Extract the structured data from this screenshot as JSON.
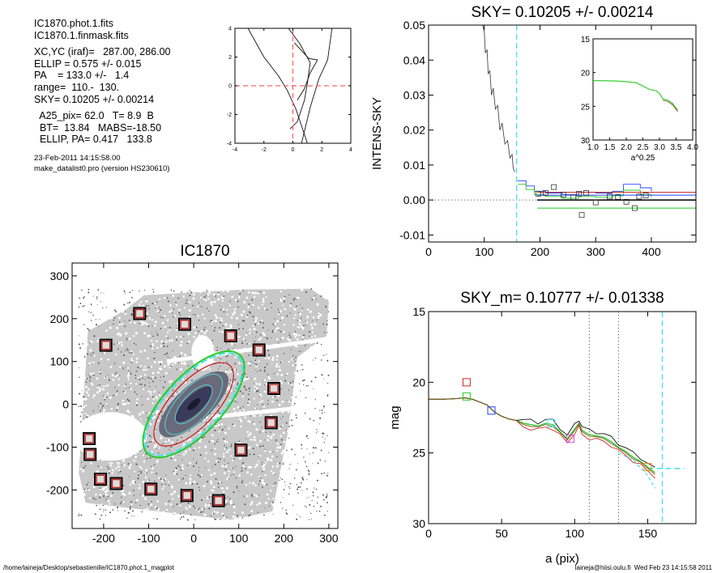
{
  "info": {
    "lines": [
      "IC1870.phot.1.fits",
      "IC1870.1.finmask.fits",
      "",
      "XC,YC (iraf)=   287.00, 286.00",
      "ELLIP = 0.575 +/- 0.015",
      "PA    = 133.0 +/-   1.4",
      "range=  110.-  130.",
      "SKY= 0.10205 +/- 0.00214",
      "",
      "  A25_pix= 62.0   T= 8.9  B",
      "  BT=  13.84   MABS=-18.50",
      "  ELLIP, PA= 0.417   133.8"
    ],
    "date": "23-Feb-2011 14:15:58.00",
    "program": "make_datalist0.pro (version HS230610)"
  },
  "footer": {
    "left": "/home/laineja/Desktop/sebastienille/IC1870.phot.1_magplot",
    "right": "laineja@hiisi.oulu.fi  Wed Feb 23 14:15:58 2011"
  },
  "colors": {
    "cyan_dash": "#44e0f0",
    "red_dash": "#ff6060",
    "green": "#22cc22",
    "red": "#cc2222",
    "blue": "#2244ff",
    "magenta": "#e040e0",
    "orange": "#e09020"
  },
  "chart_data": [
    {
      "id": "contour",
      "type": "line",
      "xlim": [
        -4,
        4
      ],
      "ylim": [
        -4,
        4
      ],
      "xticks": [
        -4,
        -2,
        0,
        2,
        4
      ],
      "yticks": [
        -4,
        -2,
        0,
        2,
        4
      ],
      "series": [
        {
          "x": [
            -3.1,
            -2.0,
            -1.0,
            -0.4,
            0.2,
            1.0
          ],
          "y": [
            4.0,
            2.0,
            0.7,
            -0.3,
            -1.6,
            -4.0
          ]
        },
        {
          "x": [
            -0.3,
            0.5,
            1.2,
            1.0,
            0.8,
            0.3,
            -0.2
          ],
          "y": [
            4.0,
            2.9,
            1.6,
            0.2,
            -1.0,
            -2.5,
            -3.0
          ]
        },
        {
          "x": [
            0.1,
            1.1,
            1.7,
            1.2,
            0.8,
            0.3
          ],
          "y": [
            3.0,
            1.9,
            1.8,
            0.9,
            -0.2,
            -1.0
          ]
        },
        {
          "x": [
            2.7,
            2.4,
            1.8,
            1.2,
            0.6
          ],
          "y": [
            4.0,
            1.8,
            0.5,
            -1.5,
            -4.0
          ]
        }
      ],
      "crosshair": {
        "x": 0,
        "y": 0
      }
    },
    {
      "id": "sky",
      "type": "line",
      "title": "SKY= 0.10205 +/- 0.00214",
      "xlabel": "",
      "ylabel": "INTENS-SKY",
      "xlim": [
        0,
        480
      ],
      "ylim": [
        -0.012,
        0.05
      ],
      "xticks": [
        0,
        100,
        200,
        300,
        400
      ],
      "yticks": [
        -0.01,
        0.0,
        0.01,
        0.02,
        0.03,
        0.04,
        0.05
      ],
      "ytick_labels": [
        "-0.01",
        "0.00",
        "0.01",
        "0.02",
        "0.03",
        "0.04",
        "0.05"
      ],
      "profile": {
        "x": [
          97,
          100,
          102,
          105,
          107,
          110,
          113,
          116,
          120,
          124,
          128,
          132,
          137,
          142,
          146,
          150,
          152,
          155
        ],
        "y": [
          0.05,
          0.048,
          0.042,
          0.043,
          0.036,
          0.037,
          0.03,
          0.032,
          0.026,
          0.027,
          0.02,
          0.022,
          0.016,
          0.017,
          0.012,
          0.013,
          0.009,
          0.008
        ]
      },
      "steps": [
        {
          "color": "blue",
          "x": [
            160,
            175,
            190,
            210,
            240,
            270,
            300,
            330,
            350,
            380,
            400
          ],
          "y": [
            0.0055,
            0.004,
            0.0025,
            0.002,
            0.0015,
            0.0022,
            0.002,
            0.0025,
            0.0045,
            0.0035,
            0.0025
          ]
        },
        {
          "color": "green",
          "x": [
            160,
            175,
            190,
            210,
            240,
            270,
            300,
            330,
            350,
            380,
            400
          ],
          "y": [
            0.0045,
            0.003,
            0.0015,
            0.001,
            0.0005,
            0.001,
            0.0008,
            0.0012,
            0.0028,
            0.0015,
            0.0008
          ]
        }
      ],
      "hlines": [
        {
          "color": "red",
          "x0": 195,
          "x1": 480,
          "y": 0.0022
        },
        {
          "color": "blue",
          "x0": 195,
          "x1": 480,
          "y": 0.0014
        },
        {
          "color": "black",
          "x0": 195,
          "x1": 480,
          "y": 0.0
        },
        {
          "color": "green",
          "x0": 195,
          "x1": 480,
          "y": -0.0023
        }
      ],
      "squares": [
        {
          "x": 197,
          "y": 0.0018
        },
        {
          "x": 210,
          "y": 0.002
        },
        {
          "x": 225,
          "y": 0.0037
        },
        {
          "x": 242,
          "y": 0.0015
        },
        {
          "x": 260,
          "y": 0.0008
        },
        {
          "x": 270,
          "y": 0.0018
        },
        {
          "x": 275,
          "y": -0.0043
        },
        {
          "x": 283,
          "y": 0.002
        },
        {
          "x": 300,
          "y": -0.0007
        },
        {
          "x": 325,
          "y": 0.001
        },
        {
          "x": 340,
          "y": 0.0009
        },
        {
          "x": 355,
          "y": -0.0005
        },
        {
          "x": 370,
          "y": -0.0023
        },
        {
          "x": 378,
          "y": 0.001
        },
        {
          "x": 390,
          "y": 0.0013
        }
      ],
      "zero_line": 0.0,
      "vline_cyan": 158,
      "inset": {
        "xlabel": "a^0.25",
        "xlim": [
          1.0,
          4.0
        ],
        "ylim": [
          30,
          15
        ],
        "xticks": [
          1.0,
          1.5,
          2.0,
          2.5,
          3.0,
          3.5,
          4.0
        ],
        "xtick_labels": [
          "1.0",
          "1.5",
          "2.0",
          "2.5",
          "3.0",
          "3.5",
          "4.0"
        ],
        "yticks": [
          15,
          20,
          25,
          30
        ],
        "x": [
          1.0,
          1.3,
          1.7,
          2.0,
          2.3,
          2.5,
          2.7,
          2.9,
          3.0,
          3.1,
          3.25,
          3.4,
          3.55
        ],
        "y": [
          21.2,
          21.2,
          21.25,
          21.35,
          21.5,
          22.0,
          22.5,
          22.7,
          23.1,
          23.9,
          24.1,
          24.6,
          25.6
        ]
      }
    },
    {
      "id": "image",
      "type": "scatter",
      "title": "IC1870",
      "xlim": [
        -270,
        320
      ],
      "ylim": [
        -290,
        330
      ],
      "xticks": [
        -200,
        -100,
        0,
        100,
        200,
        300
      ],
      "yticks": [
        -200,
        -100,
        0,
        100,
        200,
        300
      ],
      "sky_boxes": [
        {
          "x": -120,
          "y": 212
        },
        {
          "x": -20,
          "y": 187
        },
        {
          "x": 82,
          "y": 160
        },
        {
          "x": 145,
          "y": 127
        },
        {
          "x": -195,
          "y": 138
        },
        {
          "x": 178,
          "y": 37
        },
        {
          "x": 172,
          "y": -43
        },
        {
          "x": 105,
          "y": -107
        },
        {
          "x": -232,
          "y": -80
        },
        {
          "x": -230,
          "y": -117
        },
        {
          "x": -207,
          "y": -175
        },
        {
          "x": -172,
          "y": -185
        },
        {
          "x": -95,
          "y": -198
        },
        {
          "x": -15,
          "y": -213
        },
        {
          "x": 55,
          "y": -225
        }
      ],
      "ellipses": [
        {
          "color": "#22cc22",
          "a": 150,
          "b": 64,
          "pa": 133
        },
        {
          "color": "#44e0f0",
          "a": 145,
          "b": 60,
          "pa": 133
        },
        {
          "color": "#cc2222",
          "a": 118,
          "b": 50,
          "pa": 133
        },
        {
          "color": "#5bbcc0",
          "a": 85,
          "b": 36,
          "pa": 133
        },
        {
          "color": "#5bbcc0",
          "a": 55,
          "b": 23,
          "pa": 133
        }
      ]
    },
    {
      "id": "mag",
      "type": "line",
      "title": "SKY_m=  0.10777 +/- 0.01338",
      "xlabel": "a (pix)",
      "ylabel": "mag",
      "xlim": [
        0,
        183
      ],
      "ylim": [
        30,
        15
      ],
      "xticks": [
        0,
        50,
        100,
        150
      ],
      "yticks": [
        15,
        20,
        25,
        30
      ],
      "profile": {
        "x": [
          0,
          10,
          20,
          25,
          30,
          40,
          45,
          50,
          55,
          60,
          65,
          70,
          75,
          80,
          85,
          90,
          95,
          100,
          103,
          105,
          110,
          115,
          120,
          125,
          130,
          135,
          140,
          145,
          150,
          155
        ],
        "y": [
          21.2,
          21.2,
          21.15,
          21.1,
          21.2,
          21.6,
          22.1,
          22.4,
          22.6,
          22.7,
          22.9,
          23.0,
          23.1,
          22.9,
          23.0,
          23.5,
          24.0,
          23.3,
          22.9,
          23.4,
          23.7,
          23.8,
          23.9,
          24.2,
          24.6,
          24.9,
          25.3,
          25.6,
          26.0,
          26.4
        ]
      },
      "squares": [
        {
          "x": 26,
          "y": 20.0,
          "color": "red"
        },
        {
          "x": 26,
          "y": 21.0,
          "color": "green"
        },
        {
          "x": 43,
          "y": 22.0,
          "color": "blue"
        },
        {
          "x": 84,
          "y": 22.9,
          "color": "cyan"
        },
        {
          "x": 97,
          "y": 24.0,
          "color": "magenta"
        },
        {
          "x": 150,
          "y": 26.0,
          "color": "orange"
        }
      ],
      "vlines_dotted": [
        110,
        130
      ],
      "vline_cyan": 160,
      "hline_cyan": {
        "x0": 150,
        "x1": 175,
        "y": 26.1
      }
    }
  ]
}
